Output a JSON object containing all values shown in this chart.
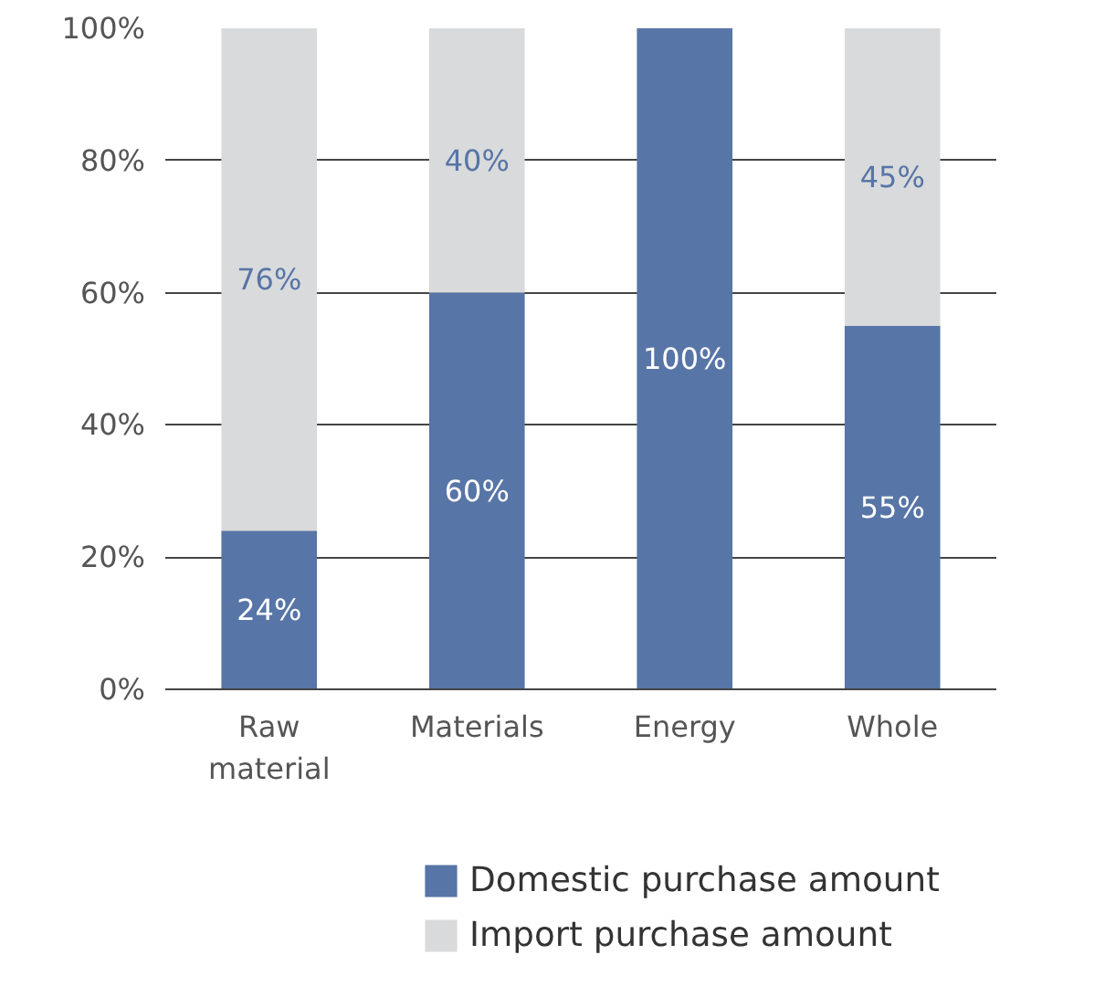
{
  "chart_data": {
    "type": "bar",
    "stacked": true,
    "categories": [
      "Raw material",
      "Materials",
      "Energy",
      "Whole"
    ],
    "series": [
      {
        "name": "Domestic purchase amount",
        "color": "#5775a6",
        "values": [
          24,
          60,
          100,
          55
        ],
        "value_labels": [
          "24%",
          "60%",
          "100%",
          "55%"
        ]
      },
      {
        "name": "Import purchase amount",
        "color": "#d9dadc",
        "values": [
          76,
          40,
          0,
          45
        ],
        "value_labels": [
          "76%",
          "40%",
          null,
          "45%"
        ]
      }
    ],
    "ylim": [
      0,
      100
    ],
    "yticks": [
      {
        "value": 0,
        "label": "0%"
      },
      {
        "value": 20,
        "label": "20%"
      },
      {
        "value": 40,
        "label": "40%"
      },
      {
        "value": 60,
        "label": "60%"
      },
      {
        "value": 80,
        "label": "80%"
      },
      {
        "value": 100,
        "label": "100%"
      }
    ],
    "grid": "y",
    "legend": "bottom"
  }
}
